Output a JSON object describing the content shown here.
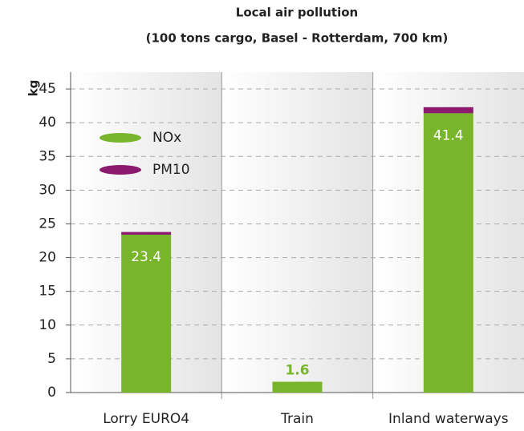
{
  "chart_data": {
    "type": "stacked_bar",
    "title": "Local air pollution",
    "subtitle": "(100 tons cargo, Basel - Rotterdam, 700 km)",
    "y_label": "kg",
    "categories": [
      "Lorry EURO4",
      "Train",
      "Inland waterways"
    ],
    "series": [
      {
        "name": "NOx",
        "color": "#78b52a",
        "values": [
          23.4,
          1.6,
          41.4
        ]
      },
      {
        "name": "PM10",
        "color": "#8b1a6e",
        "values": [
          0.4,
          0,
          0.9
        ]
      }
    ],
    "ylim": [
      0,
      47.5
    ],
    "yticks": [
      0,
      5,
      10,
      15,
      20,
      25,
      30,
      35,
      40,
      45
    ],
    "grid": true
  }
}
